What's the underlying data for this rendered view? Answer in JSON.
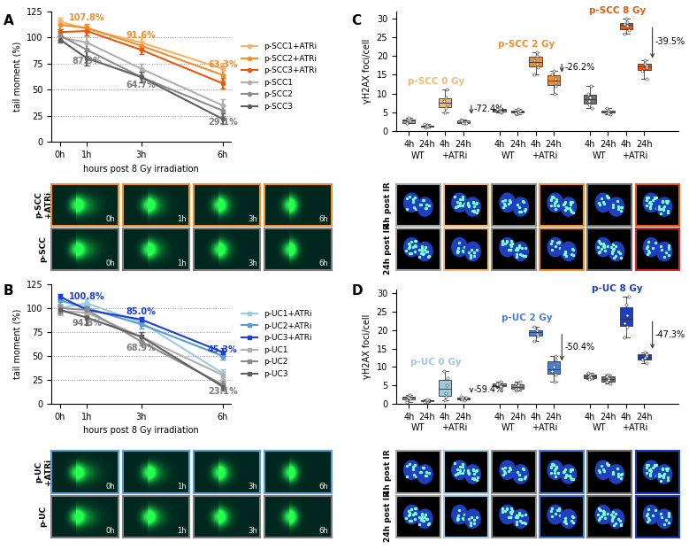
{
  "chart_data": [
    {
      "type": "line",
      "panel": "A",
      "x_label": "hours post 8 Gy irradiation",
      "y_label": "tail moment (%)",
      "x": [
        0,
        1,
        3,
        6
      ],
      "xlim": [
        -0.3,
        6.3
      ],
      "xticks": [
        {
          "value": 0,
          "label": "0h"
        },
        {
          "value": 1,
          "label": "1h"
        },
        {
          "value": 3,
          "label": "3h"
        },
        {
          "value": 6,
          "label": "6h"
        }
      ],
      "ylim": [
        0,
        125
      ],
      "yticks": [
        0,
        25,
        50,
        75,
        100,
        125
      ],
      "legend": "right",
      "series": [
        {
          "name": "p-SCC1+ATRi",
          "color": "#f7b36a",
          "marker": "o",
          "values": [
            115,
            108,
            95,
            70
          ],
          "errors": [
            4,
            4,
            5,
            6
          ]
        },
        {
          "name": "p-SCC2+ATRi",
          "color": "#f28e2b",
          "marker": "o",
          "values": [
            112,
            109,
            92,
            64
          ],
          "errors": [
            4,
            4,
            4,
            5
          ]
        },
        {
          "name": "p-SCC3+ATRi",
          "color": "#e8590c",
          "marker": "o",
          "values": [
            105,
            106,
            88,
            56
          ],
          "errors": [
            3,
            4,
            4,
            5
          ]
        },
        {
          "name": "p-SCC1",
          "color": "#b0b0b0",
          "marker": "o",
          "values": [
            100,
            95,
            70,
            35
          ],
          "errors": [
            4,
            6,
            5,
            6
          ]
        },
        {
          "name": "p-SCC2",
          "color": "#8c8c8c",
          "marker": "o",
          "values": [
            102,
            88,
            62,
            30
          ],
          "errors": [
            4,
            6,
            5,
            5
          ]
        },
        {
          "name": "p-SCC3",
          "color": "#5f5f5f",
          "marker": "o",
          "values": [
            98,
            80,
            62,
            22
          ],
          "errors": [
            3,
            7,
            5,
            5
          ]
        }
      ],
      "annotations": [
        {
          "x": 1,
          "value": 107.8,
          "label": "107.8%",
          "color": "#f28e2b",
          "side": "above"
        },
        {
          "x": 3,
          "value": 91.6,
          "label": "91.6%",
          "color": "#f28e2b",
          "side": "above"
        },
        {
          "x": 6,
          "value": 63.3,
          "label": "63.3%",
          "color": "#f28e2b",
          "side": "above"
        },
        {
          "x": 1,
          "value": 87.9,
          "label": "87.9%",
          "color": "#7f7f7f",
          "side": "below"
        },
        {
          "x": 3,
          "value": 64.7,
          "label": "64.7%",
          "color": "#7f7f7f",
          "side": "below"
        },
        {
          "x": 6,
          "value": 29.1,
          "label": "29.1%",
          "color": "#7f7f7f",
          "side": "below"
        }
      ],
      "image_rows": [
        {
          "label": "p-SCC\n+ATRi",
          "color": "#f28e2b",
          "panels": [
            "0h",
            "1h",
            "3h",
            "6h"
          ]
        },
        {
          "label": "p-SCC",
          "color": "#7f7f7f",
          "panels": [
            "0h",
            "1h",
            "3h",
            "6h"
          ]
        }
      ]
    },
    {
      "type": "line",
      "panel": "B",
      "x_label": "hours post 8 Gy irradiation",
      "y_label": "tail moment (%)",
      "x": [
        0,
        1,
        3,
        6
      ],
      "xlim": [
        -0.3,
        6.3
      ],
      "xticks": [
        {
          "value": 0,
          "label": "0h"
        },
        {
          "value": 1,
          "label": "1h"
        },
        {
          "value": 3,
          "label": "3h"
        },
        {
          "value": 6,
          "label": "6h"
        }
      ],
      "ylim": [
        0,
        125
      ],
      "yticks": [
        0,
        25,
        50,
        75,
        100,
        125
      ],
      "legend": "right",
      "series": [
        {
          "name": "p-UC1+ATRi",
          "color": "#9ecae1",
          "marker": "s",
          "values": [
            100,
            105,
            85,
            32
          ],
          "errors": [
            4,
            4,
            4,
            4
          ]
        },
        {
          "name": "p-UC2+ATRi",
          "color": "#5b9bd5",
          "marker": "s",
          "values": [
            108,
            100,
            83,
            50
          ],
          "errors": [
            4,
            4,
            4,
            4
          ]
        },
        {
          "name": "p-UC3+ATRi",
          "color": "#1f3fd1",
          "marker": "s",
          "values": [
            112,
            98,
            88,
            54
          ],
          "errors": [
            3,
            4,
            3,
            4
          ]
        },
        {
          "name": "p-UC1",
          "color": "#b0b0b0",
          "marker": "s",
          "values": [
            97,
            95,
            70,
            30
          ],
          "errors": [
            5,
            6,
            5,
            4
          ]
        },
        {
          "name": "p-UC2",
          "color": "#8c8c8c",
          "marker": "s",
          "values": [
            100,
            98,
            65,
            20
          ],
          "errors": [
            4,
            6,
            4,
            4
          ]
        },
        {
          "name": "p-UC3",
          "color": "#5f5f5f",
          "marker": "s",
          "values": [
            98,
            90,
            70,
            18
          ],
          "errors": [
            4,
            8,
            5,
            4
          ]
        }
      ],
      "annotations": [
        {
          "x": 1,
          "value": 100.8,
          "label": "100.8%",
          "color": "#1f3fd1",
          "side": "above"
        },
        {
          "x": 3,
          "value": 85.0,
          "label": "85.0%",
          "color": "#1f3fd1",
          "side": "above"
        },
        {
          "x": 6,
          "value": 45.3,
          "label": "45.3%",
          "color": "#1f3fd1",
          "side": "above"
        },
        {
          "x": 1,
          "value": 94.8,
          "label": "94.8%",
          "color": "#7f7f7f",
          "side": "below"
        },
        {
          "x": 3,
          "value": 68.9,
          "label": "68.9%",
          "color": "#7f7f7f",
          "side": "below"
        },
        {
          "x": 6,
          "value": 23.1,
          "label": "23.1%",
          "color": "#7f7f7f",
          "side": "below"
        }
      ],
      "image_rows": [
        {
          "label": "p-UC\n+ATRi",
          "color": "#5b9bd5",
          "panels": [
            "0h",
            "1h",
            "3h",
            "6h"
          ]
        },
        {
          "label": "p-UC",
          "color": "#7f7f7f",
          "panels": [
            "0h",
            "1h",
            "3h",
            "6h"
          ]
        }
      ]
    },
    {
      "type": "box",
      "panel": "C",
      "y_label": "γH2AX foci/cell",
      "ylim": [
        0,
        32
      ],
      "yticks": [
        0,
        5,
        10,
        15,
        20,
        25,
        30
      ],
      "groups": [
        {
          "name": "p-SCC 0 Gy",
          "color": "#f5b971",
          "change": {
            "value": -72.4,
            "label": "-72.4%"
          },
          "boxes": [
            {
              "category": "4h",
              "condition": "WT",
              "color": "#a6a6a6",
              "values": [
                2,
                3,
                2.5,
                3,
                2,
                3.5
              ]
            },
            {
              "category": "24h",
              "condition": "WT",
              "color": "#a6a6a6",
              "values": [
                1.5,
                1,
                1.2,
                1.8,
                1.4,
                1.3
              ]
            },
            {
              "category": "4h",
              "condition": "+ATRi",
              "color": "#f5b971",
              "values": [
                5,
                9,
                11,
                7,
                8,
                6
              ]
            },
            {
              "category": "24h",
              "condition": "+ATRi",
              "color": "#f5b971",
              "values": [
                2,
                2.5,
                3,
                2.2,
                2.8,
                2
              ]
            }
          ]
        },
        {
          "name": "p-SCC 2 Gy",
          "color": "#f28e2b",
          "change": {
            "value": -26.2,
            "label": "-26.2%"
          },
          "boxes": [
            {
              "category": "4h",
              "condition": "WT",
              "color": "#8c8c8c",
              "values": [
                5,
                5.5,
                6,
                5.2,
                5.8,
                6.2
              ]
            },
            {
              "category": "24h",
              "condition": "WT",
              "color": "#8c8c8c",
              "values": [
                4.5,
                5,
                5.2,
                5.5,
                4.8,
                5.8
              ]
            },
            {
              "category": "4h",
              "condition": "+ATRi",
              "color": "#f28e2b",
              "values": [
                15,
                18,
                21,
                19,
                17,
                20
              ]
            },
            {
              "category": "24h",
              "condition": "+ATRi",
              "color": "#f28e2b",
              "values": [
                10,
                12,
                16,
                14,
                13,
                15
              ]
            }
          ]
        },
        {
          "name": "p-SCC 8 Gy",
          "color": "#e8590c",
          "change": {
            "value": -39.5,
            "label": "-39.5%"
          },
          "boxes": [
            {
              "category": "4h",
              "condition": "WT",
              "color": "#6f6f6f",
              "values": [
                6,
                8,
                9,
                10,
                12,
                7
              ]
            },
            {
              "category": "24h",
              "condition": "WT",
              "color": "#6f6f6f",
              "values": [
                4.5,
                5,
                5.5,
                5,
                4.8,
                6
              ]
            },
            {
              "category": "4h",
              "condition": "+ATRi",
              "color": "#e8590c",
              "values": [
                26,
                28,
                29,
                30,
                27,
                28.5
              ]
            },
            {
              "category": "24h",
              "condition": "+ATRi",
              "color": "#e8590c",
              "values": [
                14,
                16,
                17,
                18,
                19,
                17.5
              ]
            }
          ]
        }
      ],
      "image_rows": [
        {
          "label": "4h post IR",
          "colors": [
            "#a6a6a6",
            "#f5b971",
            "#8c8c8c",
            "#f28e2b",
            "#6f6f6f",
            "#e8590c"
          ]
        },
        {
          "label": "24h post IR",
          "colors": [
            "#a6a6a6",
            "#f5b971",
            "#8c8c8c",
            "#f28e2b",
            "#6f6f6f",
            "#d62728"
          ]
        }
      ]
    },
    {
      "type": "box",
      "panel": "D",
      "y_label": "γH2AX foci/cell",
      "ylim": [
        0,
        31
      ],
      "yticks": [
        0,
        5,
        10,
        15,
        20,
        25,
        30
      ],
      "groups": [
        {
          "name": "p-UC 0 Gy",
          "color": "#9ecae1",
          "change": {
            "value": -59.4,
            "label": "-59.4%"
          },
          "boxes": [
            {
              "category": "4h",
              "condition": "WT",
              "color": "#a6a6a6",
              "values": [
                1,
                2,
                1.5,
                2.5,
                0.5,
                1.8
              ]
            },
            {
              "category": "24h",
              "condition": "WT",
              "color": "#a6a6a6",
              "values": [
                0.5,
                0.8,
                1,
                0.6,
                0.9,
                1.2
              ]
            },
            {
              "category": "4h",
              "condition": "+ATRi",
              "color": "#9ecae1",
              "values": [
                1,
                3,
                5,
                7,
                9,
                2
              ]
            },
            {
              "category": "24h",
              "condition": "+ATRi",
              "color": "#9ecae1",
              "values": [
                1,
                1.5,
                2,
                1.8,
                1.2,
                1.6
              ]
            }
          ]
        },
        {
          "name": "p-UC 2 Gy",
          "color": "#4a7fd4",
          "change": {
            "value": -50.4,
            "label": "-50.4%"
          },
          "boxes": [
            {
              "category": "4h",
              "condition": "WT",
              "color": "#8c8c8c",
              "values": [
                4.5,
                5,
                5.5,
                6,
                5.2,
                4.8
              ]
            },
            {
              "category": "24h",
              "condition": "WT",
              "color": "#8c8c8c",
              "values": [
                3.5,
                4,
                5,
                6,
                5.5,
                4.2
              ]
            },
            {
              "category": "4h",
              "condition": "+ATRi",
              "color": "#4a7fd4",
              "values": [
                17,
                19,
                20,
                21,
                18.5,
                20
              ]
            },
            {
              "category": "24h",
              "condition": "+ATRi",
              "color": "#4a7fd4",
              "values": [
                6,
                8,
                10,
                12,
                13,
                9
              ]
            }
          ]
        },
        {
          "name": "p-UC 8 Gy",
          "color": "#1d3fbf",
          "change": {
            "value": -47.3,
            "label": "-47.3%"
          },
          "boxes": [
            {
              "category": "4h",
              "condition": "WT",
              "color": "#6f6f6f",
              "values": [
                7,
                7.5,
                8,
                8.5,
                7.2,
                6.8
              ]
            },
            {
              "category": "24h",
              "condition": "WT",
              "color": "#6f6f6f",
              "values": [
                5.5,
                6,
                7,
                8,
                6.5,
                7.5
              ]
            },
            {
              "category": "4h",
              "condition": "+ATRi",
              "color": "#1d3fbf",
              "values": [
                18,
                21,
                24,
                27,
                29,
                22
              ]
            },
            {
              "category": "24h",
              "condition": "+ATRi",
              "color": "#1d3fbf",
              "values": [
                11,
                12,
                13,
                14,
                12.5,
                13.5
              ]
            }
          ]
        }
      ],
      "image_rows": [
        {
          "label": "4h post IR",
          "colors": [
            "#a6a6a6",
            "#9ecae1",
            "#8c8c8c",
            "#4a7fd4",
            "#6f6f6f",
            "#1d3fbf"
          ]
        },
        {
          "label": "24h post IR",
          "colors": [
            "#a6a6a6",
            "#9ecae1",
            "#8c8c8c",
            "#4a7fd4",
            "#6f6f6f",
            "#1d3fbf"
          ]
        }
      ]
    }
  ]
}
